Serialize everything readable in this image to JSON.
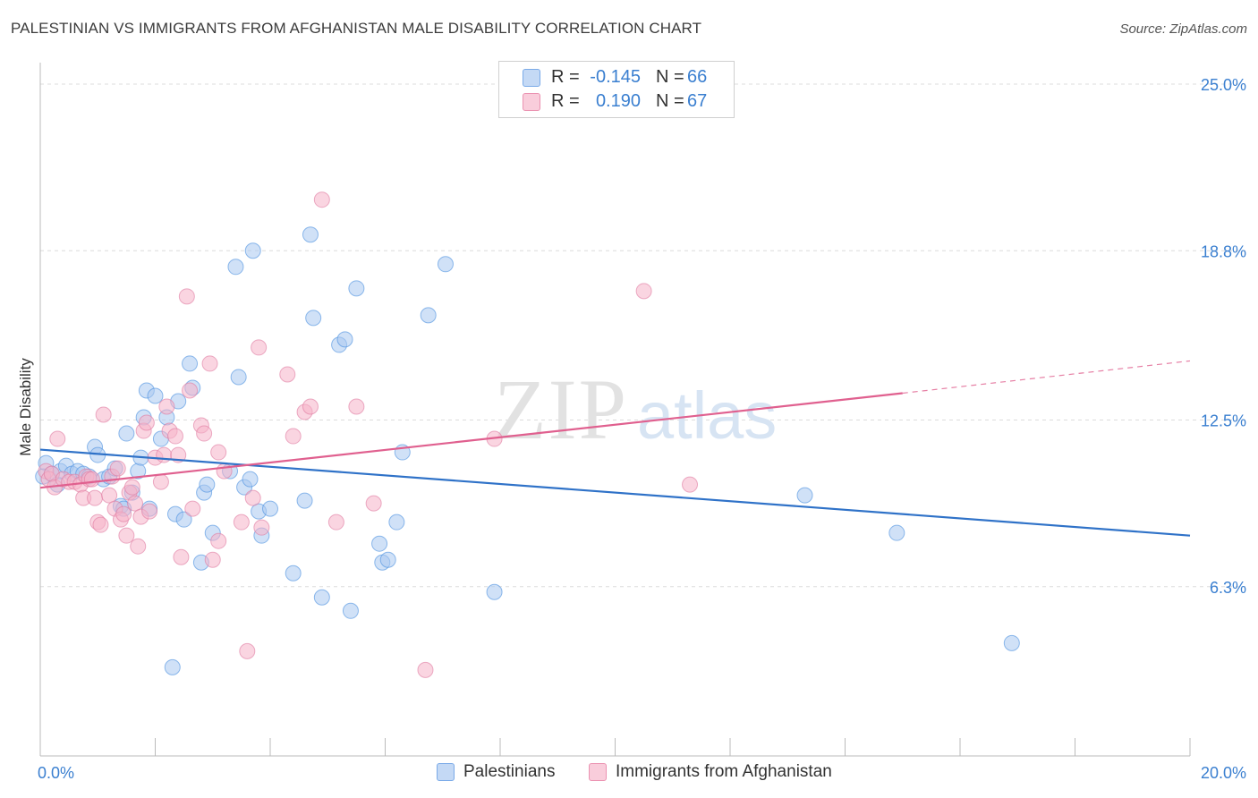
{
  "header": {
    "title": "PALESTINIAN VS IMMIGRANTS FROM AFGHANISTAN MALE DISABILITY CORRELATION CHART",
    "source": "Source: ZipAtlas.com"
  },
  "watermark": {
    "part1": "ZIP",
    "part2": "atlas"
  },
  "stats": {
    "rows": [
      {
        "r_label": "R =",
        "r_value": "-0.145",
        "n_label": "N =",
        "n_value": "66",
        "color": "#a9c8f0"
      },
      {
        "r_label": "R =",
        "r_value": "0.190",
        "n_label": "N =",
        "n_value": "67",
        "color": "#f6b3c8"
      }
    ]
  },
  "legend": {
    "items": [
      {
        "label": "Palestinians",
        "color": "#a9c8f0"
      },
      {
        "label": "Immigrants from Afghanistan",
        "color": "#f6b3c8"
      }
    ]
  },
  "chart_data": {
    "type": "scatter",
    "title": "PALESTINIAN VS IMMIGRANTS FROM AFGHANISTAN MALE DISABILITY CORRELATION CHART",
    "xlabel": "",
    "ylabel": "Male Disability",
    "xlim": [
      0,
      20
    ],
    "ylim": [
      0,
      25.8
    ],
    "x_tick_labels": [
      "0.0%",
      "20.0%"
    ],
    "y_ticks": [
      6.3,
      12.5,
      18.8,
      25.0
    ],
    "y_tick_labels": [
      "6.3%",
      "12.5%",
      "18.8%",
      "25.0%"
    ],
    "grid": true,
    "legend_position": "bottom",
    "series": [
      {
        "name": "Palestinians",
        "color": "#4a8fe0",
        "fill": "#a9c8f0",
        "trend": {
          "x": [
            0,
            20
          ],
          "y": [
            11.4,
            8.2
          ],
          "color": "#2f72c8",
          "dashed_from": null
        },
        "points": [
          [
            0.1,
            10.9
          ],
          [
            0.2,
            10.5
          ],
          [
            0.3,
            10.1
          ],
          [
            0.35,
            10.6
          ],
          [
            0.45,
            10.8
          ],
          [
            0.55,
            10.5
          ],
          [
            0.65,
            10.6
          ],
          [
            0.75,
            10.5
          ],
          [
            0.85,
            10.4
          ],
          [
            0.95,
            11.5
          ],
          [
            1.0,
            11.2
          ],
          [
            1.1,
            10.3
          ],
          [
            1.2,
            10.4
          ],
          [
            1.3,
            10.7
          ],
          [
            1.4,
            9.3
          ],
          [
            1.45,
            9.2
          ],
          [
            1.5,
            12.0
          ],
          [
            1.6,
            9.8
          ],
          [
            1.7,
            10.6
          ],
          [
            1.75,
            11.1
          ],
          [
            1.8,
            12.6
          ],
          [
            1.85,
            13.6
          ],
          [
            1.9,
            9.2
          ],
          [
            2.0,
            13.4
          ],
          [
            2.1,
            11.8
          ],
          [
            2.2,
            12.6
          ],
          [
            2.3,
            3.3
          ],
          [
            2.35,
            9.0
          ],
          [
            2.4,
            13.2
          ],
          [
            2.5,
            8.8
          ],
          [
            2.6,
            14.6
          ],
          [
            2.65,
            13.7
          ],
          [
            2.8,
            7.2
          ],
          [
            2.85,
            9.8
          ],
          [
            2.9,
            10.1
          ],
          [
            3.0,
            8.3
          ],
          [
            3.3,
            10.6
          ],
          [
            3.4,
            18.2
          ],
          [
            3.45,
            14.1
          ],
          [
            3.55,
            10.0
          ],
          [
            3.65,
            10.3
          ],
          [
            3.7,
            18.8
          ],
          [
            3.8,
            9.1
          ],
          [
            3.85,
            8.2
          ],
          [
            4.0,
            9.2
          ],
          [
            4.4,
            6.8
          ],
          [
            4.6,
            9.5
          ],
          [
            4.7,
            19.4
          ],
          [
            4.75,
            16.3
          ],
          [
            4.9,
            5.9
          ],
          [
            5.2,
            15.3
          ],
          [
            5.3,
            15.5
          ],
          [
            5.4,
            5.4
          ],
          [
            5.5,
            17.4
          ],
          [
            5.9,
            7.9
          ],
          [
            5.95,
            7.2
          ],
          [
            6.05,
            7.3
          ],
          [
            6.2,
            8.7
          ],
          [
            6.3,
            11.3
          ],
          [
            6.75,
            16.4
          ],
          [
            7.05,
            18.3
          ],
          [
            7.9,
            6.1
          ],
          [
            13.3,
            9.7
          ],
          [
            14.9,
            8.3
          ],
          [
            16.9,
            4.2
          ],
          [
            0.05,
            10.4
          ]
        ]
      },
      {
        "name": "Immigrants from Afghanistan",
        "color": "#e07aa0",
        "fill": "#f6b3c8",
        "trend": {
          "x": [
            0,
            15.0
          ],
          "y": [
            9.98,
            13.5
          ],
          "dashed_to": [
            20,
            14.7
          ],
          "color": "#e0608f"
        },
        "points": [
          [
            0.1,
            10.6
          ],
          [
            0.15,
            10.3
          ],
          [
            0.2,
            10.5
          ],
          [
            0.25,
            10.0
          ],
          [
            0.3,
            11.8
          ],
          [
            0.4,
            10.3
          ],
          [
            0.5,
            10.2
          ],
          [
            0.6,
            10.2
          ],
          [
            0.7,
            10.1
          ],
          [
            0.75,
            9.6
          ],
          [
            0.8,
            10.4
          ],
          [
            0.85,
            10.3
          ],
          [
            0.9,
            10.3
          ],
          [
            0.95,
            9.6
          ],
          [
            1.0,
            8.7
          ],
          [
            1.05,
            8.6
          ],
          [
            1.1,
            12.7
          ],
          [
            1.2,
            9.7
          ],
          [
            1.25,
            10.4
          ],
          [
            1.3,
            9.2
          ],
          [
            1.35,
            10.7
          ],
          [
            1.4,
            8.8
          ],
          [
            1.45,
            9.0
          ],
          [
            1.5,
            8.2
          ],
          [
            1.55,
            9.8
          ],
          [
            1.6,
            10.0
          ],
          [
            1.65,
            9.4
          ],
          [
            1.7,
            7.8
          ],
          [
            1.75,
            8.9
          ],
          [
            1.8,
            12.1
          ],
          [
            1.85,
            12.4
          ],
          [
            1.9,
            9.1
          ],
          [
            2.0,
            11.1
          ],
          [
            2.1,
            10.2
          ],
          [
            2.15,
            11.2
          ],
          [
            2.2,
            13.0
          ],
          [
            2.25,
            12.1
          ],
          [
            2.35,
            11.9
          ],
          [
            2.4,
            11.2
          ],
          [
            2.45,
            7.4
          ],
          [
            2.55,
            17.1
          ],
          [
            2.6,
            13.6
          ],
          [
            2.65,
            9.2
          ],
          [
            2.8,
            12.3
          ],
          [
            2.85,
            12.0
          ],
          [
            2.95,
            14.6
          ],
          [
            3.0,
            7.3
          ],
          [
            3.1,
            8.0
          ],
          [
            3.1,
            11.3
          ],
          [
            3.2,
            10.6
          ],
          [
            3.5,
            8.7
          ],
          [
            3.6,
            3.9
          ],
          [
            3.7,
            9.6
          ],
          [
            3.8,
            15.2
          ],
          [
            3.85,
            8.5
          ],
          [
            4.3,
            14.2
          ],
          [
            4.4,
            11.9
          ],
          [
            4.6,
            12.8
          ],
          [
            4.7,
            13.0
          ],
          [
            4.9,
            20.7
          ],
          [
            5.15,
            8.7
          ],
          [
            5.5,
            13.0
          ],
          [
            5.8,
            9.4
          ],
          [
            6.7,
            3.2
          ],
          [
            7.9,
            11.8
          ],
          [
            10.5,
            17.3
          ],
          [
            11.3,
            10.1
          ]
        ]
      }
    ]
  }
}
